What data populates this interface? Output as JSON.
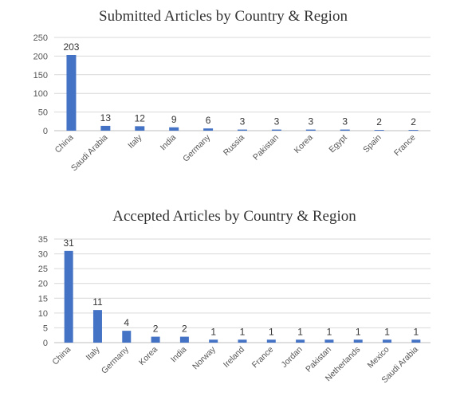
{
  "chart_data": [
    {
      "type": "bar",
      "title": "Submitted Articles by Country & Region",
      "xlabel": "",
      "ylabel": "",
      "ylim": [
        0,
        250
      ],
      "yticks": [
        0,
        50,
        100,
        150,
        200,
        250
      ],
      "grid": true,
      "bar_color": "#4472C4",
      "categories": [
        "China",
        "Saudi Arabia",
        "Italy",
        "India",
        "Germany",
        "Russia",
        "Pakistan",
        "Korea",
        "Egypt",
        "Spain",
        "France"
      ],
      "values": [
        203,
        13,
        12,
        9,
        6,
        3,
        3,
        3,
        3,
        2,
        2
      ]
    },
    {
      "type": "bar",
      "title": "Accepted Articles by Country & Region",
      "xlabel": "",
      "ylabel": "",
      "ylim": [
        0,
        35
      ],
      "yticks": [
        0,
        5,
        10,
        15,
        20,
        25,
        30,
        35
      ],
      "grid": true,
      "bar_color": "#4472C4",
      "categories": [
        "China",
        "Italy",
        "Germany",
        "Korea",
        "India",
        "Norway",
        "Ireland",
        "France",
        "Jordan",
        "Pakistan",
        "Netherlands",
        "Mexico",
        "Saudi Arabia"
      ],
      "values": [
        31,
        11,
        4,
        2,
        2,
        1,
        1,
        1,
        1,
        1,
        1,
        1,
        1
      ]
    }
  ]
}
